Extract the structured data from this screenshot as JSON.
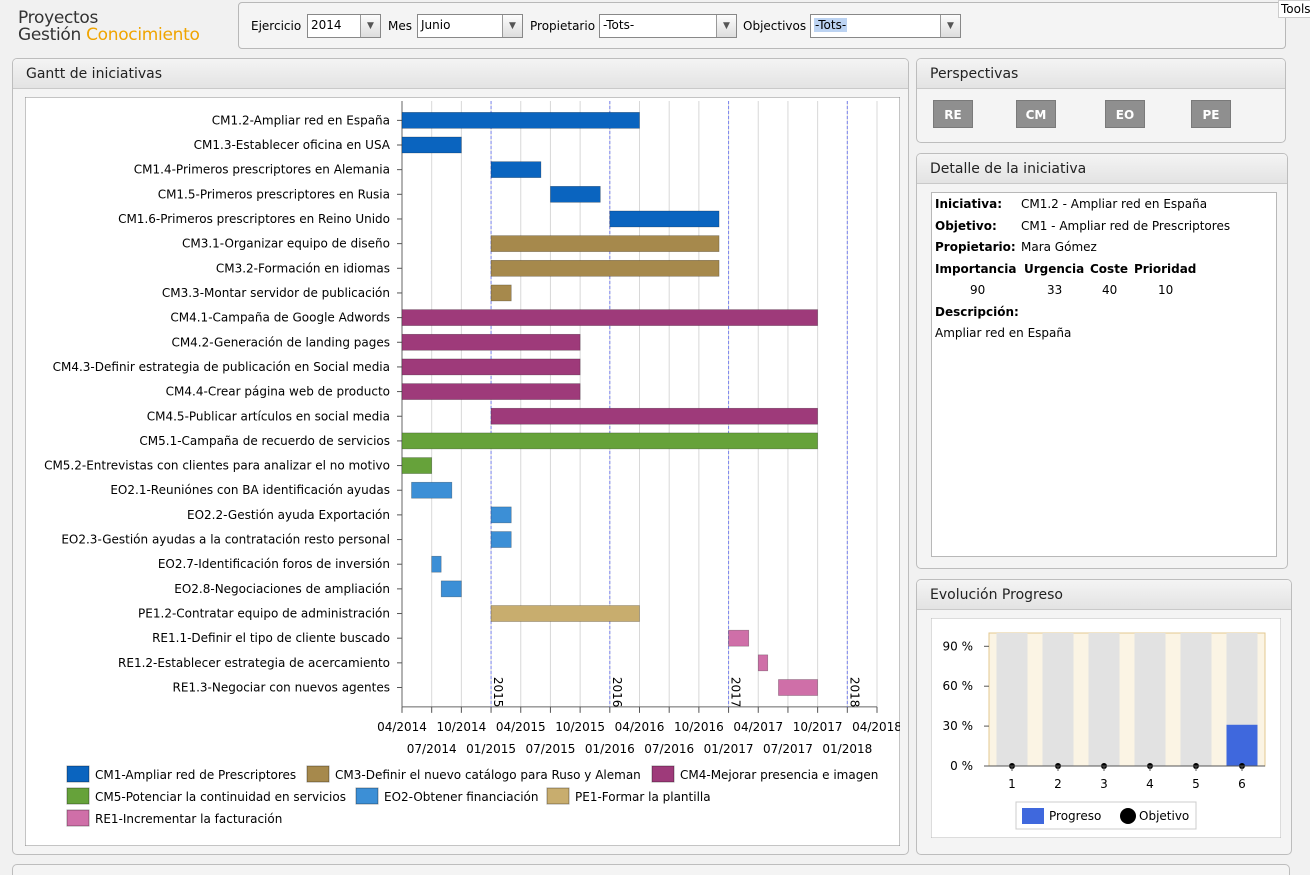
{
  "logo": {
    "line1": "Proyectos",
    "line2a": "Gestión ",
    "line2b": "Conocimiento"
  },
  "tools_label": "Tools",
  "filters": [
    {
      "label": "Ejercicio",
      "value": "2014"
    },
    {
      "label": "Mes",
      "value": "Junio"
    },
    {
      "label": "Propietario",
      "value": "-Tots-"
    },
    {
      "label": "Objectivos",
      "value": "-Tots-"
    }
  ],
  "gantt": {
    "title": "Gantt de iniciativas",
    "tasks": [
      {
        "label": "CM1.2-Ampliar red en España",
        "start": 2014.25,
        "end": 2016.25,
        "group": "CM1"
      },
      {
        "label": "CM1.3-Establecer oficina en USA",
        "start": 2014.25,
        "end": 2014.75,
        "group": "CM1"
      },
      {
        "label": "CM1.4-Primeros prescriptores en Alemania",
        "start": 2015.0,
        "end": 2015.42,
        "group": "CM1"
      },
      {
        "label": "CM1.5-Primeros prescriptores en Rusia",
        "start": 2015.5,
        "end": 2015.92,
        "group": "CM1"
      },
      {
        "label": "CM1.6-Primeros prescriptores en Reino Unido",
        "start": 2016.0,
        "end": 2016.92,
        "group": "CM1"
      },
      {
        "label": "CM3.1-Organizar equipo de diseño",
        "start": 2015.0,
        "end": 2016.92,
        "group": "CM3"
      },
      {
        "label": "CM3.2-Formación en idiomas",
        "start": 2015.0,
        "end": 2016.92,
        "group": "CM3"
      },
      {
        "label": "CM3.3-Montar servidor de publicación",
        "start": 2015.0,
        "end": 2015.17,
        "group": "CM3"
      },
      {
        "label": "CM4.1-Campaña de Google Adwords",
        "start": 2014.25,
        "end": 2017.75,
        "group": "CM4"
      },
      {
        "label": "CM4.2-Generación de landing pages",
        "start": 2014.25,
        "end": 2015.75,
        "group": "CM4"
      },
      {
        "label": "CM4.3-Definir estrategia de publicación en Social media",
        "start": 2014.25,
        "end": 2015.75,
        "group": "CM4"
      },
      {
        "label": "CM4.4-Crear página web de producto",
        "start": 2014.25,
        "end": 2015.75,
        "group": "CM4"
      },
      {
        "label": "CM4.5-Publicar artículos en social media",
        "start": 2015.0,
        "end": 2017.75,
        "group": "CM4"
      },
      {
        "label": "CM5.1-Campaña de recuerdo de servicios",
        "start": 2014.25,
        "end": 2017.75,
        "group": "CM5"
      },
      {
        "label": "CM5.2-Entrevistas con clientes para analizar el no motivo",
        "start": 2014.25,
        "end": 2014.5,
        "group": "CM5"
      },
      {
        "label": "EO2.1-Reuniónes con BA identificación ayudas",
        "start": 2014.33,
        "end": 2014.67,
        "group": "EO2"
      },
      {
        "label": "EO2.2-Gestión ayuda Exportación",
        "start": 2015.0,
        "end": 2015.17,
        "group": "EO2"
      },
      {
        "label": "EO2.3-Gestión ayudas a la contratación resto personal",
        "start": 2015.0,
        "end": 2015.17,
        "group": "EO2"
      },
      {
        "label": "EO2.7-Identificación foros de inversión",
        "start": 2014.5,
        "end": 2014.58,
        "group": "EO2"
      },
      {
        "label": "EO2.8-Negociaciones de ampliación",
        "start": 2014.58,
        "end": 2014.75,
        "group": "EO2"
      },
      {
        "label": "PE1.2-Contratar equipo de administración",
        "start": 2015.0,
        "end": 2016.25,
        "group": "PE1"
      },
      {
        "label": "RE1.1-Definir el tipo de cliente buscado",
        "start": 2017.0,
        "end": 2017.17,
        "group": "RE1"
      },
      {
        "label": "RE1.2-Establecer estrategia de acercamiento",
        "start": 2017.25,
        "end": 2017.33,
        "group": "RE1"
      },
      {
        "label": "RE1.3-Negociar con nuevos agentes",
        "start": 2017.42,
        "end": 2017.75,
        "group": "RE1"
      }
    ],
    "axis_top": [
      "04/2014",
      "10/2014",
      "04/2015",
      "10/2015",
      "04/2016",
      "10/2016",
      "04/2017",
      "10/2017",
      "04/2018"
    ],
    "axis_bottom": [
      "07/2014",
      "01/2015",
      "07/2015",
      "01/2016",
      "07/2016",
      "01/2017",
      "07/2017",
      "01/2018"
    ],
    "year_markers": [
      "2015",
      "2016",
      "2017",
      "2018"
    ],
    "legend": [
      {
        "key": "CM1",
        "label": "CM1-Ampliar red de Prescriptores"
      },
      {
        "key": "CM3",
        "label": "CM3-Definir el nuevo catálogo para Ruso y Aleman"
      },
      {
        "key": "CM4",
        "label": "CM4-Mejorar presencia e imagen"
      },
      {
        "key": "CM5",
        "label": "CM5-Potenciar la continuidad en servicios"
      },
      {
        "key": "EO2",
        "label": "EO2-Obtener financiación"
      },
      {
        "key": "PE1",
        "label": "PE1-Formar la plantilla"
      },
      {
        "key": "RE1",
        "label": "RE1-Incrementar la facturación"
      }
    ]
  },
  "colors": {
    "CM1": "#0a64bf",
    "CM3": "#a6894c",
    "CM4": "#9e3a7a",
    "CM5": "#66a23a",
    "EO2": "#3c8fd6",
    "PE1": "#c8ad6e",
    "RE1": "#cf6fa8",
    "progress": "#3f68dd"
  },
  "perspectives": {
    "title": "Perspectivas",
    "buttons": [
      "RE",
      "CM",
      "EO",
      "PE"
    ]
  },
  "detail": {
    "title": "Detalle de la iniciativa",
    "iniciativa_label": "Iniciativa:",
    "iniciativa": "CM1.2 - Ampliar red en España",
    "objetivo_label": "Objetivo:",
    "objetivo": "CM1 - Ampliar red de Prescriptores",
    "propietario_label": "Propietario:",
    "propietario": "Mara Gómez",
    "importancia_label": "Importancia",
    "importancia": "90",
    "urgencia_label": "Urgencia",
    "urgencia": "33",
    "coste_label": "Coste",
    "coste": "40",
    "prioridad_label": "Prioridad",
    "prioridad": "10",
    "descripcion_label": "Descripción:",
    "descripcion": "Ampliar red en España"
  },
  "evolucion": {
    "title": "Evolución Progreso"
  },
  "chart_data": {
    "type": "bar",
    "title": "Evolución Progreso",
    "categories": [
      "1",
      "2",
      "3",
      "4",
      "5",
      "6"
    ],
    "series": [
      {
        "name": "Progreso",
        "values": [
          0,
          0,
          0,
          0,
          0,
          31
        ]
      },
      {
        "name": "Objetivo",
        "values": [
          0,
          0,
          0,
          0,
          0,
          0
        ]
      }
    ],
    "yticks": [
      "0 %",
      "30 %",
      "60 %",
      "90 %"
    ],
    "ylim": [
      0,
      100
    ],
    "legend": "bottom"
  }
}
